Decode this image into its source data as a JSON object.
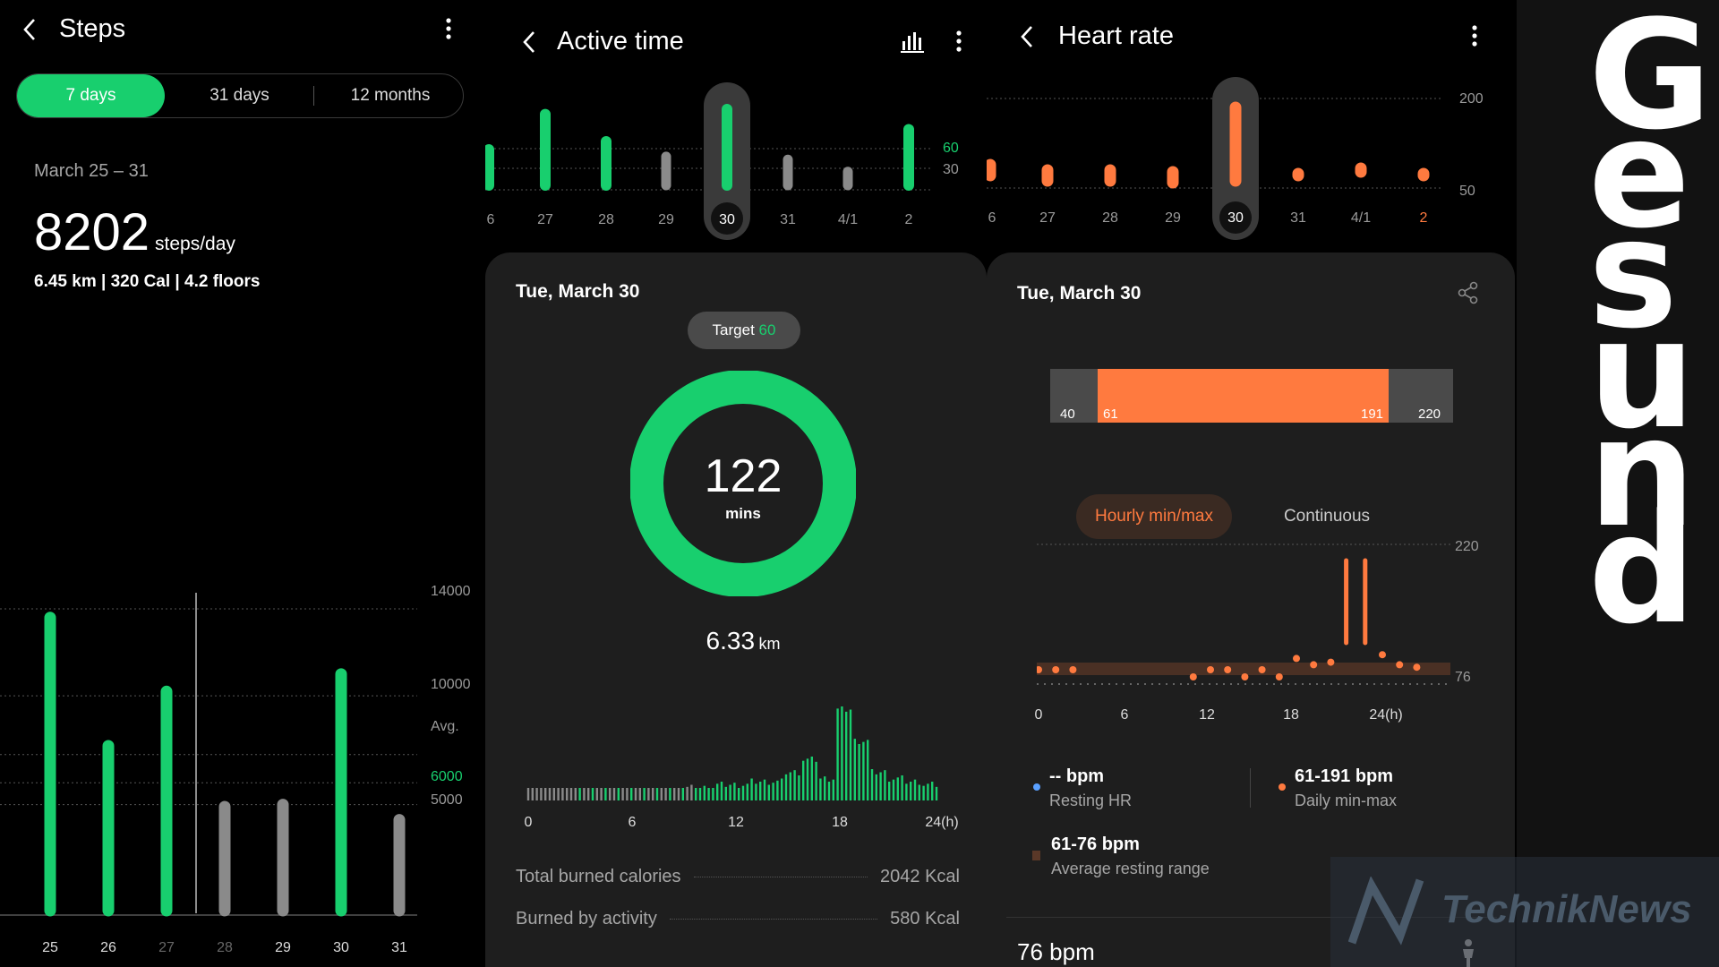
{
  "colors": {
    "green": "#18cf6e",
    "grey": "#8a8a8a",
    "orange": "#ff7a3f",
    "blue": "#5aa0ff",
    "dark_card": "#1e1e1e"
  },
  "steps": {
    "title": "Steps",
    "tabs": [
      "7 days",
      "31 days",
      "12 months"
    ],
    "active_tab": "7 days",
    "date_range": "March 25 – 31",
    "value": "8202",
    "unit": "steps/day",
    "detail": "6.45 km | 320 Cal | 4.2 floors",
    "y_labels": [
      "14000",
      "10000",
      "Avg.",
      "6000",
      "5000"
    ],
    "x_labels": [
      "25",
      "26",
      "27",
      "28",
      "29",
      "30",
      "31"
    ],
    "icons": [
      "back-arrow-icon",
      "more-vert-icon"
    ]
  },
  "active": {
    "title": "Active time",
    "week_labels": [
      "6",
      "27",
      "28",
      "29",
      "30",
      "31",
      "4/1",
      "2"
    ],
    "week_ref_labels": [
      "60",
      "30"
    ],
    "card_date": "Tue, March 30",
    "target_label": "Target",
    "target_value": "60",
    "ring_value": "122",
    "ring_unit": "mins",
    "distance_value": "6.33",
    "distance_unit": "km",
    "hour_labels": [
      "0",
      "6",
      "12",
      "18",
      "24(h)"
    ],
    "rows": [
      {
        "label": "Total burned calories",
        "value": "2042 Kcal"
      },
      {
        "label": "Burned by activity",
        "value": "580 Kcal"
      }
    ],
    "icons": [
      "back-arrow-icon",
      "bar-chart-icon",
      "more-vert-icon"
    ]
  },
  "heart": {
    "title": "Heart rate",
    "week_labels": [
      "6",
      "27",
      "28",
      "29",
      "30",
      "31",
      "4/1",
      "2"
    ],
    "week_ref_labels": [
      "200",
      "50"
    ],
    "card_date": "Tue, March 30",
    "range_labels": [
      "40",
      "61",
      "191",
      "220"
    ],
    "toggle": [
      "Hourly min/max",
      "Continuous"
    ],
    "active_toggle": "Hourly min/max",
    "y_labels": [
      "220",
      "76"
    ],
    "hour_labels": [
      "0",
      "6",
      "12",
      "18",
      "24(h)"
    ],
    "stats": [
      {
        "value": "-- bpm",
        "label": "Resting HR"
      },
      {
        "value": "61-191 bpm",
        "label": "Daily min-max"
      },
      {
        "value": "61-76 bpm",
        "label": "Average resting range"
      }
    ],
    "bottom_value": "76 bpm",
    "icons": [
      "back-arrow-icon",
      "more-vert-icon",
      "share-icon",
      "person-icon"
    ]
  },
  "branding": {
    "word_letters": [
      "G",
      "e",
      "s",
      "u",
      "n",
      "d"
    ],
    "watermark": "TechnikNews"
  },
  "chart_data": [
    {
      "type": "bar",
      "title": "Steps",
      "categories": [
        "25",
        "26",
        "27",
        "28",
        "29",
        "30",
        "31"
      ],
      "values": [
        13600,
        7700,
        10200,
        4900,
        5000,
        11000,
        4300
      ],
      "ylim": [
        0,
        14000
      ],
      "grid": true
    },
    {
      "type": "bar",
      "title": "Active time",
      "categories": [
        "6",
        "27",
        "28",
        "29",
        "30",
        "31",
        "4/1",
        "2"
      ],
      "values": [
        40,
        75,
        48,
        33,
        80,
        30,
        18,
        60
      ],
      "ylim": [
        0,
        80
      ]
    },
    {
      "type": "bar",
      "title": "",
      "xlabel": "",
      "categories": [
        "0",
        "1",
        "2",
        "3",
        "4",
        "5",
        "6",
        "7",
        "8",
        "9",
        "10",
        "11",
        "12",
        "13",
        "14",
        "15",
        "16",
        "17",
        "18",
        "19",
        "20",
        "21",
        "22",
        "23"
      ],
      "values": [
        2,
        2,
        2,
        2,
        2,
        2,
        2,
        2,
        2,
        3,
        3,
        4,
        4,
        5,
        5,
        8,
        12,
        6,
        28,
        18,
        8,
        6,
        5,
        4
      ],
      "ylim": [
        0,
        30
      ]
    },
    {
      "type": "scatter",
      "title": "Heart rate",
      "x": [
        0,
        1,
        2,
        9,
        10,
        11,
        12,
        13,
        14,
        15,
        16,
        17,
        18,
        19,
        20,
        21,
        22
      ],
      "y": [
        76,
        76,
        76,
        70,
        76,
        76,
        72,
        76,
        72,
        85,
        80,
        82,
        185,
        185,
        88,
        80,
        78
      ],
      "ylim": [
        50,
        220
      ]
    }
  ]
}
